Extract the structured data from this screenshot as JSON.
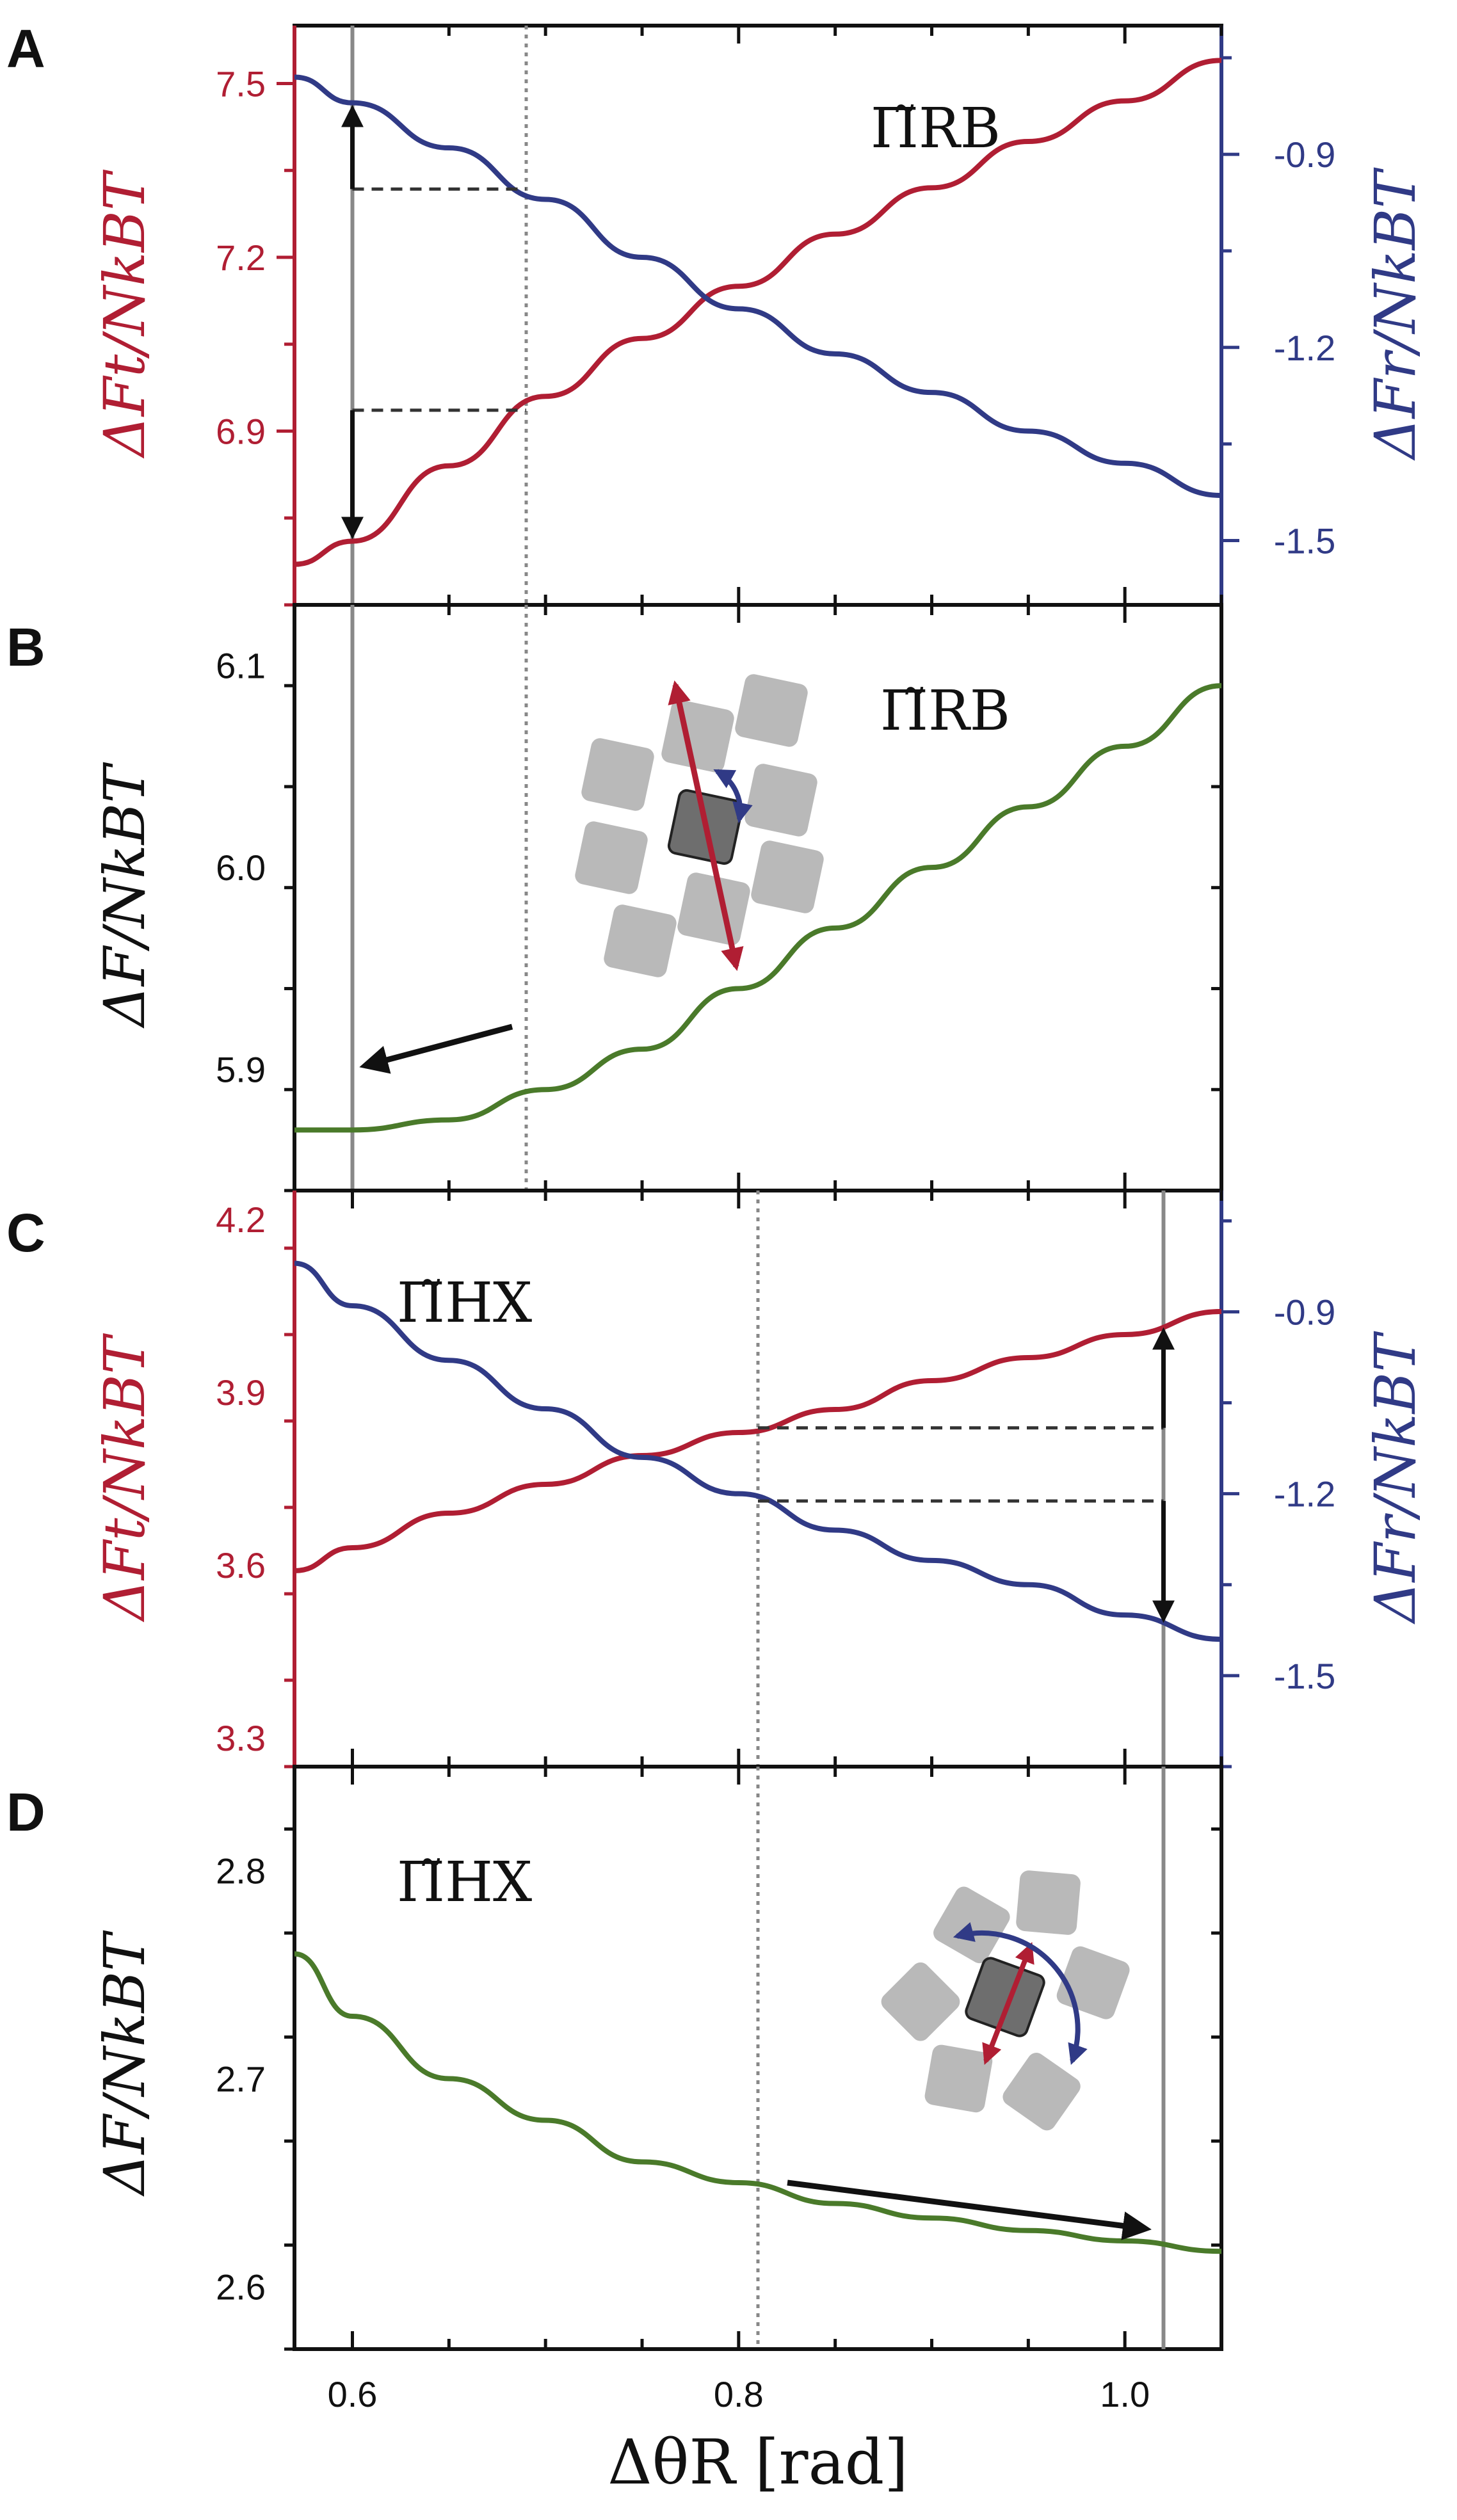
{
  "colors": {
    "red": "#b01e33",
    "blue": "#303a86",
    "green": "#4a7a2a",
    "black": "#111111",
    "gray": "#888888"
  },
  "chart_data": [
    {
      "panel": "A",
      "type": "line",
      "annotation": "Π̃RB",
      "x": [
        0.57,
        0.6,
        0.65,
        0.7,
        0.75,
        0.8,
        0.85,
        0.9,
        0.95,
        1.0,
        1.05
      ],
      "series": [
        {
          "name": "ΔFt/NkBT",
          "axis": "left",
          "color": "red",
          "values": [
            6.67,
            6.71,
            6.84,
            6.96,
            7.06,
            7.15,
            7.24,
            7.32,
            7.4,
            7.47,
            7.54
          ]
        },
        {
          "name": "ΔFr/NkBT",
          "axis": "right",
          "color": "blue",
          "values": [
            -0.78,
            -0.82,
            -0.89,
            -0.97,
            -1.06,
            -1.14,
            -1.21,
            -1.27,
            -1.33,
            -1.38,
            -1.43
          ]
        }
      ],
      "left_axis": {
        "label": "ΔFt/NkBT",
        "ylim": [
          6.6,
          7.6
        ],
        "ticks": [
          6.9,
          7.2,
          7.5
        ],
        "tick_labels": [
          "6.9",
          "7.2",
          "7.5"
        ]
      },
      "right_axis": {
        "label": "ΔFr/NkBT",
        "ylim": [
          -1.6,
          -0.7
        ],
        "ticks": [
          -1.5,
          -1.2,
          -0.9
        ],
        "tick_labels": [
          "-1.5",
          "-1.2",
          "-0.9"
        ]
      },
      "solid_vline": 0.6,
      "dotted_vline": 0.69
    },
    {
      "panel": "B",
      "type": "line",
      "annotation": "Π̃RB",
      "x": [
        0.57,
        0.6,
        0.65,
        0.7,
        0.75,
        0.8,
        0.85,
        0.9,
        0.95,
        1.0,
        1.05
      ],
      "series": [
        {
          "name": "ΔF/NkBT",
          "axis": "left",
          "color": "green",
          "values": [
            5.87,
            5.87,
            5.875,
            5.89,
            5.91,
            5.94,
            5.97,
            6.0,
            6.03,
            6.06,
            6.09
          ]
        }
      ],
      "left_axis": {
        "label": "ΔF/NkBT",
        "ylim": [
          5.84,
          6.13
        ],
        "ticks": [
          5.9,
          6.0,
          6.1
        ],
        "tick_labels": [
          "5.9",
          "6.0",
          "6.1"
        ]
      },
      "solid_vline": 0.6,
      "dotted_vline": 0.69
    },
    {
      "panel": "C",
      "type": "line",
      "annotation": "Π̃HX",
      "x": [
        0.57,
        0.6,
        0.65,
        0.7,
        0.75,
        0.8,
        0.85,
        0.9,
        0.95,
        1.0,
        1.05
      ],
      "series": [
        {
          "name": "ΔFt/NkBT",
          "axis": "left",
          "color": "red",
          "values": [
            3.59,
            3.63,
            3.69,
            3.74,
            3.79,
            3.83,
            3.87,
            3.92,
            3.96,
            4.0,
            4.04
          ]
        },
        {
          "name": "ΔFr/NkBT",
          "axis": "right",
          "color": "blue",
          "values": [
            -0.82,
            -0.89,
            -0.98,
            -1.06,
            -1.14,
            -1.2,
            -1.26,
            -1.31,
            -1.35,
            -1.4,
            -1.44
          ]
        }
      ],
      "left_axis": {
        "label": "ΔFt/NkBT",
        "ylim": [
          3.25,
          4.25
        ],
        "ticks": [
          3.3,
          3.6,
          3.9,
          4.2
        ],
        "tick_labels": [
          "3.3",
          "3.6",
          "3.9",
          "4.2"
        ]
      },
      "right_axis": {
        "label": "ΔFr/NkBT",
        "ylim": [
          -1.65,
          -0.7
        ],
        "ticks": [
          -1.5,
          -1.2,
          -0.9
        ],
        "tick_labels": [
          "-1.5",
          "-1.2",
          "-0.9"
        ]
      },
      "solid_vline": 1.02,
      "dotted_vline": 0.81
    },
    {
      "panel": "D",
      "type": "line",
      "annotation": "Π̃HX",
      "x": [
        0.57,
        0.6,
        0.65,
        0.7,
        0.75,
        0.8,
        0.85,
        0.9,
        0.95,
        1.0,
        1.05
      ],
      "series": [
        {
          "name": "ΔF/NkBT",
          "axis": "left",
          "color": "green",
          "values": [
            2.76,
            2.73,
            2.7,
            2.68,
            2.66,
            2.65,
            2.64,
            2.633,
            2.627,
            2.622,
            2.617
          ]
        }
      ],
      "left_axis": {
        "label": "ΔF/NkBT",
        "ylim": [
          2.57,
          2.85
        ],
        "ticks": [
          2.6,
          2.7,
          2.8
        ],
        "tick_labels": [
          "2.6",
          "2.7",
          "2.8"
        ]
      },
      "solid_vline": 1.02,
      "dotted_vline": 0.81
    }
  ],
  "x_axis": {
    "label": "ΔθR [rad]",
    "xlim": [
      0.57,
      1.05
    ],
    "ticks": [
      0.6,
      0.8,
      1.0
    ],
    "tick_labels": [
      "0.6",
      "0.8",
      "1.0"
    ]
  }
}
